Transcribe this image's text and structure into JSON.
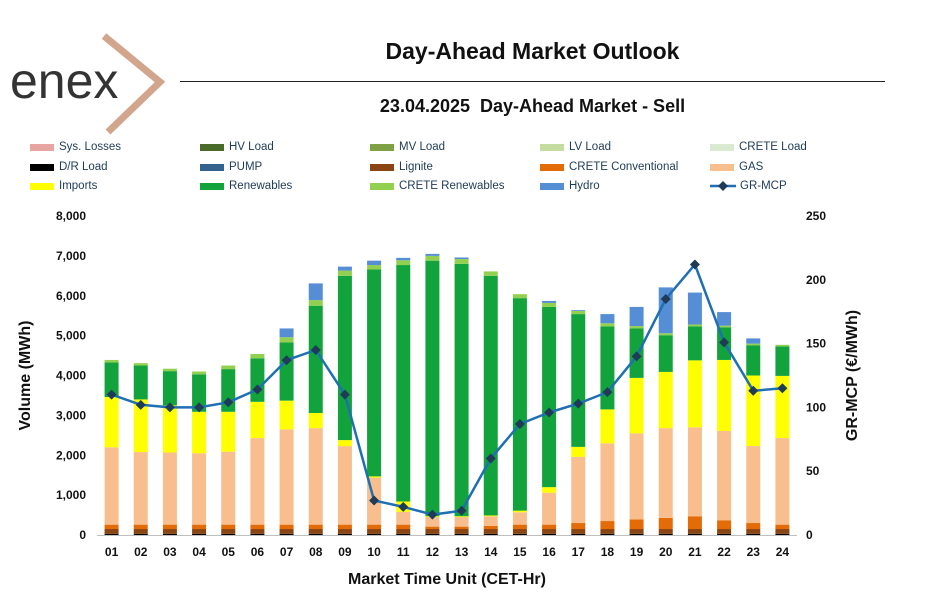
{
  "header": {
    "logo_text": "enex",
    "title": "Day-Ahead Market Outlook",
    "subtitle": "23.04.2025  Day-Ahead Market - Sell"
  },
  "legend": [
    {
      "label": "Sys. Losses",
      "color": "#e6a5a0",
      "marker": "box"
    },
    {
      "label": "HV Load",
      "color": "#4a6b2a",
      "marker": "box"
    },
    {
      "label": "MV Load",
      "color": "#7ea145",
      "marker": "box"
    },
    {
      "label": "LV Load",
      "color": "#c4dca0",
      "marker": "box"
    },
    {
      "label": "CRETE Load",
      "color": "#d9ead0",
      "marker": "box"
    },
    {
      "label": "D/R Load",
      "color": "#000000",
      "marker": "box"
    },
    {
      "label": "PUMP",
      "color": "#34628f",
      "marker": "box"
    },
    {
      "label": "Lignite",
      "color": "#8b4513",
      "marker": "box"
    },
    {
      "label": "CRETE Conventional",
      "color": "#e36c09",
      "marker": "box"
    },
    {
      "label": "GAS",
      "color": "#f8be8d",
      "marker": "box"
    },
    {
      "label": "Imports",
      "color": "#ffff00",
      "marker": "box"
    },
    {
      "label": "Renewables",
      "color": "#12a33c",
      "marker": "box"
    },
    {
      "label": "CRETE Renewables",
      "color": "#92d050",
      "marker": "box"
    },
    {
      "label": "Hydro",
      "color": "#558ed5",
      "marker": "box"
    },
    {
      "label": "GR-MCP",
      "color": "#1f6fb2",
      "marker": "line"
    }
  ],
  "chart_data": {
    "type": "bar",
    "stacked": true,
    "xlabel": "Market Time Unit (CET-Hr)",
    "ylabel": "Volume (MWh)",
    "y2label": "GR-MCP (€/MWh)",
    "ylim": [
      0,
      8000
    ],
    "y2lim": [
      0,
      250
    ],
    "yticks": [
      "0",
      "1,000",
      "2,000",
      "3,000",
      "4,000",
      "5,000",
      "6,000",
      "7,000",
      "8,000"
    ],
    "y2ticks": [
      "0",
      "50",
      "100",
      "150",
      "200",
      "250"
    ],
    "categories": [
      "01",
      "02",
      "03",
      "04",
      "05",
      "06",
      "07",
      "08",
      "09",
      "10",
      "11",
      "12",
      "13",
      "14",
      "15",
      "16",
      "17",
      "18",
      "19",
      "20",
      "21",
      "22",
      "23",
      "24"
    ],
    "series": [
      {
        "name": "D/R Load",
        "color": "#000000",
        "values": [
          30,
          30,
          30,
          30,
          30,
          30,
          30,
          30,
          30,
          30,
          30,
          30,
          30,
          30,
          30,
          30,
          30,
          30,
          30,
          30,
          30,
          30,
          30,
          30
        ]
      },
      {
        "name": "Lignite",
        "color": "#8b4513",
        "values": [
          120,
          120,
          120,
          120,
          120,
          120,
          120,
          120,
          120,
          120,
          120,
          120,
          120,
          120,
          120,
          120,
          120,
          120,
          120,
          120,
          120,
          120,
          120,
          120
        ]
      },
      {
        "name": "CRETE Conventional",
        "color": "#e36c09",
        "values": [
          110,
          110,
          110,
          110,
          110,
          110,
          110,
          110,
          110,
          110,
          110,
          60,
          60,
          80,
          110,
          110,
          150,
          200,
          240,
          280,
          320,
          220,
          150,
          110
        ]
      },
      {
        "name": "GAS",
        "color": "#f8be8d",
        "values": [
          1940,
          1820,
          1810,
          1790,
          1830,
          2170,
          2390,
          2420,
          1970,
          1180,
          320,
          240,
          240,
          240,
          310,
          800,
          1660,
          1950,
          2160,
          2250,
          2230,
          2240,
          1930,
          2170
        ]
      },
      {
        "name": "Imports",
        "color": "#ffff00",
        "values": [
          1260,
          1320,
          1180,
          1040,
          1000,
          910,
          720,
          380,
          150,
          30,
          260,
          20,
          20,
          20,
          40,
          140,
          250,
          850,
          1390,
          1410,
          1680,
          1780,
          1770,
          1560
        ]
      },
      {
        "name": "Renewables",
        "color": "#12a33c",
        "values": [
          870,
          850,
          860,
          940,
          1070,
          1090,
          1460,
          2690,
          4120,
          5190,
          5930,
          6410,
          6330,
          6010,
          5330,
          4520,
          3330,
          2080,
          1240,
          920,
          850,
          820,
          760,
          740
        ]
      },
      {
        "name": "CRETE Renewables",
        "color": "#92d050",
        "values": [
          60,
          60,
          60,
          70,
          90,
          110,
          130,
          140,
          130,
          110,
          120,
          120,
          120,
          110,
          100,
          100,
          80,
          80,
          60,
          50,
          50,
          40,
          40,
          40
        ]
      },
      {
        "name": "Hydro",
        "color": "#558ed5",
        "values": [
          0,
          0,
          0,
          0,
          0,
          0,
          220,
          420,
          100,
          110,
          60,
          50,
          40,
          0,
          0,
          50,
          20,
          230,
          480,
          1150,
          800,
          340,
          130,
          0
        ]
      },
      {
        "name": "HV Load",
        "color": "#4a6b2a",
        "values": [
          0,
          0,
          0,
          0,
          0,
          0,
          0,
          0,
          0,
          0,
          0,
          0,
          0,
          0,
          0,
          0,
          0,
          0,
          0,
          0,
          0,
          0,
          0,
          0
        ]
      },
      {
        "name": "MV Load",
        "color": "#7ea145",
        "values": [
          0,
          0,
          0,
          0,
          0,
          0,
          0,
          0,
          0,
          0,
          0,
          0,
          0,
          0,
          0,
          0,
          0,
          0,
          0,
          0,
          0,
          0,
          0,
          0
        ]
      },
      {
        "name": "LV Load",
        "color": "#c4dca0",
        "values": [
          0,
          0,
          0,
          0,
          0,
          0,
          0,
          0,
          0,
          0,
          0,
          0,
          0,
          0,
          0,
          0,
          0,
          0,
          0,
          0,
          0,
          0,
          0,
          0
        ]
      },
      {
        "name": "CRETE Load",
        "color": "#d9ead0",
        "values": [
          0,
          0,
          0,
          0,
          0,
          0,
          0,
          0,
          0,
          0,
          0,
          0,
          0,
          0,
          0,
          0,
          0,
          0,
          0,
          0,
          0,
          0,
          0,
          0
        ]
      },
      {
        "name": "PUMP",
        "color": "#34628f",
        "values": [
          0,
          0,
          0,
          0,
          0,
          0,
          0,
          0,
          0,
          0,
          0,
          0,
          0,
          0,
          0,
          0,
          0,
          0,
          0,
          0,
          0,
          0,
          0,
          0
        ]
      },
      {
        "name": "Sys. Losses",
        "color": "#e6a5a0",
        "values": [
          0,
          0,
          0,
          0,
          0,
          0,
          0,
          0,
          0,
          0,
          0,
          0,
          0,
          0,
          0,
          0,
          0,
          0,
          0,
          0,
          0,
          0,
          0,
          0
        ]
      }
    ],
    "line": {
      "name": "GR-MCP",
      "color": "#1f6fb2",
      "axis": "right",
      "values": [
        110,
        102,
        100,
        100,
        104,
        114,
        137,
        145,
        110,
        27,
        22,
        16,
        19,
        60,
        87,
        96,
        103,
        112,
        140,
        185,
        212,
        151,
        113,
        115
      ]
    }
  }
}
